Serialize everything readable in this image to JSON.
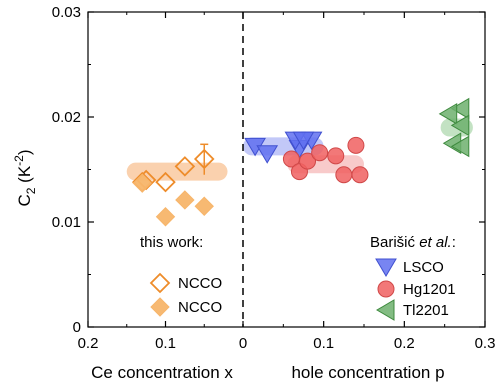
{
  "chart_data": {
    "type": "scatter",
    "title": "",
    "ylabel": {
      "base": "C",
      "sub": "2",
      "unit_pre": " (K",
      "unit_sup": "-2",
      "unit_post": ")"
    },
    "xlabel_left": "Ce concentration x",
    "xlabel_right": "hole concentration p",
    "ylim": [
      0,
      0.03
    ],
    "yticks": [
      "0",
      "0.01",
      "0.02",
      "0.03"
    ],
    "left_axis": {
      "xlim": [
        0.2,
        0
      ],
      "reversed": true,
      "ticks": [
        "0.2",
        "0.1"
      ]
    },
    "right_axis": {
      "xlim": [
        0,
        0.3
      ],
      "ticks": [
        "0",
        "0.1",
        "0.2",
        "0.3"
      ]
    },
    "divider_style": "dashed",
    "legend": {
      "left_heading": "this work:",
      "right_heading_prefix": "Barišić ",
      "right_heading_italic": "et al.",
      "right_heading_suffix": ":"
    },
    "series": [
      {
        "name": "NCCO",
        "marker": "diamond-open",
        "color": "#EE8C2A",
        "axis": "left",
        "points": [
          [
            0.13,
            0.0138
          ],
          [
            0.1,
            0.0138
          ],
          [
            0.075,
            0.0153
          ],
          [
            0.05,
            0.016
          ],
          [
            0.125,
            0.014
          ]
        ],
        "errorbar": {
          "x": 0.05,
          "y_low": 0.0145,
          "y_high": 0.0174
        }
      },
      {
        "name": "NCCO",
        "marker": "diamond-filled",
        "color": "#F7B56A",
        "axis": "left",
        "points": [
          [
            0.13,
            0.0137
          ],
          [
            0.1,
            0.0105
          ],
          [
            0.075,
            0.0121
          ],
          [
            0.05,
            0.0115
          ]
        ]
      },
      {
        "name": "LSCO",
        "marker": "triangle-down",
        "color": "#6070F0",
        "axis": "right",
        "points": [
          [
            0.015,
            0.0172
          ],
          [
            0.03,
            0.0165
          ],
          [
            0.07,
            0.017
          ],
          [
            0.085,
            0.0178
          ],
          [
            0.065,
            0.0178
          ],
          [
            0.075,
            0.0178
          ]
        ]
      },
      {
        "name": "Hg1201",
        "marker": "circle",
        "color": "#F06060",
        "axis": "right",
        "points": [
          [
            0.06,
            0.016
          ],
          [
            0.07,
            0.0148
          ],
          [
            0.08,
            0.0158
          ],
          [
            0.095,
            0.0166
          ],
          [
            0.115,
            0.0163
          ],
          [
            0.125,
            0.0145
          ],
          [
            0.14,
            0.0173
          ],
          [
            0.145,
            0.0145
          ]
        ]
      },
      {
        "name": "Tl2201",
        "marker": "triangle-left",
        "color": "#6DB06D",
        "axis": "right",
        "points": [
          [
            0.27,
            0.0208
          ],
          [
            0.255,
            0.0203
          ],
          [
            0.27,
            0.0192
          ],
          [
            0.26,
            0.0175
          ],
          [
            0.27,
            0.0172
          ]
        ]
      }
    ],
    "bands": [
      {
        "axis": "left",
        "x_from": 0.15,
        "x_to": 0.02,
        "y": 0.0148,
        "color": "#F9C9A0"
      },
      {
        "axis": "right",
        "x_from": 0.0,
        "x_to": 0.1,
        "y": 0.0172,
        "color": "#B7BEF7"
      },
      {
        "axis": "right",
        "x_from": 0.055,
        "x_to": 0.15,
        "y": 0.0155,
        "color": "#F7C1C1"
      },
      {
        "axis": "right",
        "x_from": 0.245,
        "x_to": 0.285,
        "y": 0.019,
        "color": "#B8DDB8"
      }
    ]
  }
}
